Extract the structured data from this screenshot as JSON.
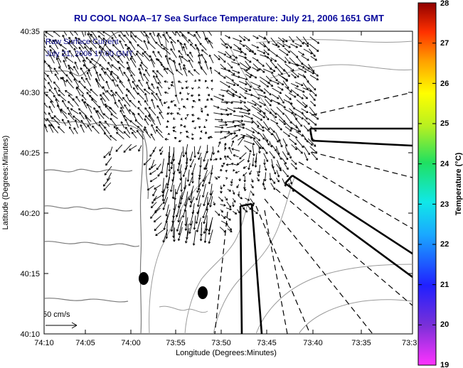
{
  "title": "RU COOL  NOAA–17  Sea Surface Temperature:  July 21, 2006 1651 GMT",
  "inset": {
    "line1": "Raw Surface Current",
    "line2": "July 21, 2006 17:00 GMT"
  },
  "scale_label": "50 cm/s",
  "axes": {
    "xlabel": "Longitude (Degrees:Minutes)",
    "ylabel": "Latitude (Degrees:Minutes)",
    "x_ticks": [
      "74:10",
      "74:05",
      "74:00",
      "73:55",
      "73:50",
      "73:45",
      "73:40",
      "73:35",
      "73:3"
    ],
    "y_ticks": [
      "40:35",
      "40:30",
      "40:25",
      "40:20",
      "40:15",
      "40:10"
    ]
  },
  "colorbar": {
    "label": "Temperature  (°C)",
    "ticks": [
      "28",
      "27",
      "26",
      "25",
      "24",
      "23",
      "22",
      "21",
      "20",
      "19"
    ],
    "min": 19,
    "max": 28
  },
  "colors": {
    "title": "#0a0a9c",
    "inset_text": "#10108a",
    "coast": "#888888",
    "arrows": "#000000"
  },
  "map_data": {
    "lon_range_minutes_west": [
      4450,
      4410
    ],
    "lat_range_minutes_north": [
      2410,
      2435
    ],
    "features": [
      "coastline",
      "bathymetry-contours",
      "surface-current-vectors",
      "shipping-lanes",
      "radar-sites"
    ]
  }
}
